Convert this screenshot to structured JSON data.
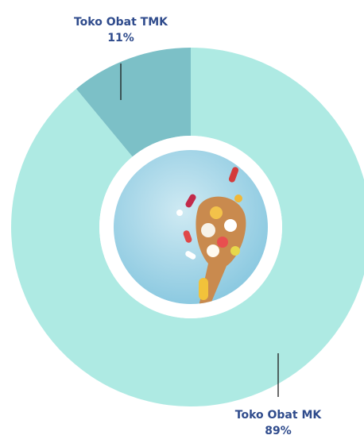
{
  "chart_data": {
    "type": "pie",
    "donut": true,
    "categories": [
      "Toko Obat MK",
      "Toko Obat TMK"
    ],
    "values": [
      89,
      11
    ],
    "value_labels": [
      "89%",
      "11%"
    ],
    "colors": [
      "#aeeae3",
      "#7cc0c7"
    ]
  }
}
